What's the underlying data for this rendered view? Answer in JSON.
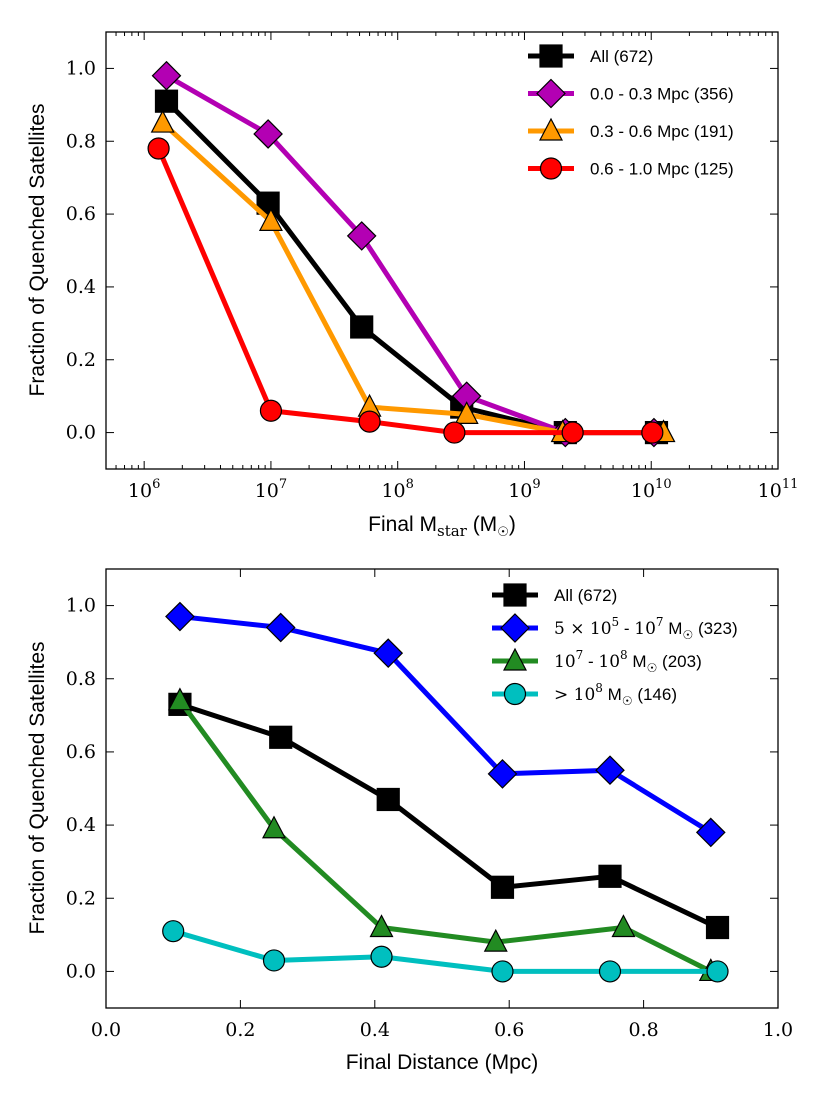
{
  "chart_data": [
    {
      "type": "line",
      "xlabel": "Final M",
      "xlabel_sub": "star",
      "xlabel_unit_open": " (M",
      "xlabel_unit_close": ")",
      "ylabel": "Fraction of Quenched Satellites",
      "xscale": "log",
      "xlim": [
        500000,
        100000000000
      ],
      "ylim": [
        -0.1,
        1.1
      ],
      "xticks": [
        {
          "value": 1000000,
          "base": "10",
          "exp": "6"
        },
        {
          "value": 10000000,
          "base": "10",
          "exp": "7"
        },
        {
          "value": 100000000,
          "base": "10",
          "exp": "8"
        },
        {
          "value": 1000000000,
          "base": "10",
          "exp": "9"
        },
        {
          "value": 10000000000,
          "base": "10",
          "exp": "10"
        },
        {
          "value": 100000000000,
          "base": "10",
          "exp": "11"
        }
      ],
      "yticks": [
        {
          "value": 0.0,
          "label": "0.0"
        },
        {
          "value": 0.2,
          "label": "0.2"
        },
        {
          "value": 0.4,
          "label": "0.4"
        },
        {
          "value": 0.6,
          "label": "0.6"
        },
        {
          "value": 0.8,
          "label": "0.8"
        },
        {
          "value": 1.0,
          "label": "1.0"
        }
      ],
      "legend_position": "top-right",
      "series": [
        {
          "name": "All (672)",
          "color": "#000000",
          "marker": "square",
          "x": [
            1500000,
            9500000,
            52000000,
            320000000,
            2100000000,
            11000000000
          ],
          "y": [
            0.91,
            0.63,
            0.29,
            0.07,
            0.0,
            0.0
          ]
        },
        {
          "name": "0.0 - 0.3 Mpc (356)",
          "color": "#b300b3",
          "marker": "diamond",
          "x": [
            1500000,
            9500000,
            52000000,
            350000000,
            2100000000,
            10500000000
          ],
          "y": [
            0.98,
            0.82,
            0.54,
            0.1,
            0.0,
            0.0
          ]
        },
        {
          "name": "0.3 - 0.6 Mpc (191)",
          "color": "#ff9900",
          "marker": "triangle",
          "x": [
            1400000,
            10000000,
            60000000,
            350000000,
            2000000000,
            12500000000
          ],
          "y": [
            0.85,
            0.58,
            0.07,
            0.05,
            0.0,
            0.0
          ]
        },
        {
          "name": "0.6 - 1.0 Mpc (125)",
          "color": "#ff0000",
          "marker": "circle",
          "x": [
            1300000,
            10000000,
            60000000,
            280000000,
            2400000000,
            10200000000
          ],
          "y": [
            0.78,
            0.06,
            0.03,
            0.0,
            0.0,
            0.0
          ]
        }
      ]
    },
    {
      "type": "line",
      "xlabel": "Final Distance (Mpc)",
      "ylabel": "Fraction of Quenched Satellites",
      "xscale": "linear",
      "xlim": [
        0.0,
        1.0
      ],
      "ylim": [
        -0.1,
        1.1
      ],
      "xticks": [
        {
          "value": 0.0,
          "label": "0.0"
        },
        {
          "value": 0.2,
          "label": "0.2"
        },
        {
          "value": 0.4,
          "label": "0.4"
        },
        {
          "value": 0.6,
          "label": "0.6"
        },
        {
          "value": 0.8,
          "label": "0.8"
        },
        {
          "value": 1.0,
          "label": "1.0"
        }
      ],
      "yticks": [
        {
          "value": 0.0,
          "label": "0.0"
        },
        {
          "value": 0.2,
          "label": "0.2"
        },
        {
          "value": 0.4,
          "label": "0.4"
        },
        {
          "value": 0.6,
          "label": "0.6"
        },
        {
          "value": 0.8,
          "label": "0.8"
        },
        {
          "value": 1.0,
          "label": "1.0"
        }
      ],
      "legend_position": "top-right",
      "series": [
        {
          "name": "All (672)",
          "color": "#000000",
          "marker": "square",
          "x": [
            0.11,
            0.26,
            0.42,
            0.59,
            0.75,
            0.91
          ],
          "y": [
            0.73,
            0.64,
            0.47,
            0.23,
            0.26,
            0.12
          ]
        },
        {
          "name": "5 × 10^5 - 10^7 M☉ (323)",
          "color": "#0000ff",
          "marker": "diamond",
          "x": [
            0.11,
            0.26,
            0.42,
            0.59,
            0.75,
            0.9
          ],
          "y": [
            0.97,
            0.94,
            0.87,
            0.54,
            0.55,
            0.38
          ]
        },
        {
          "name": "10^7 - 10^8 M☉ (203)",
          "color": "#228b22",
          "marker": "triangle",
          "x": [
            0.11,
            0.25,
            0.41,
            0.58,
            0.77,
            0.9
          ],
          "y": [
            0.74,
            0.39,
            0.12,
            0.08,
            0.12,
            0.0
          ]
        },
        {
          "name": "> 10^8 M☉ (146)",
          "color": "#00bfbf",
          "marker": "circle",
          "x": [
            0.1,
            0.25,
            0.41,
            0.59,
            0.75,
            0.91
          ],
          "y": [
            0.11,
            0.03,
            0.04,
            0.0,
            0.0,
            0.0
          ]
        }
      ],
      "legend_display": [
        {
          "parts": [
            {
              "t": "All (672)"
            }
          ]
        },
        {
          "parts": [
            {
              "t": "5",
              "f": "serif"
            },
            {
              "t": " × ",
              "f": "serif"
            },
            {
              "t": "10",
              "f": "serif"
            },
            {
              "t": "5",
              "f": "serif",
              "sup": true
            },
            {
              "t": " - "
            },
            {
              "t": "10",
              "f": "serif"
            },
            {
              "t": "7",
              "f": "serif",
              "sup": true
            },
            {
              "t": " M"
            },
            {
              "t": "☉",
              "sub": true
            },
            {
              "t": " (323)"
            }
          ]
        },
        {
          "parts": [
            {
              "t": "10",
              "f": "serif"
            },
            {
              "t": "7",
              "f": "serif",
              "sup": true
            },
            {
              "t": " - "
            },
            {
              "t": "10",
              "f": "serif"
            },
            {
              "t": "8",
              "f": "serif",
              "sup": true
            },
            {
              "t": " M"
            },
            {
              "t": "☉",
              "sub": true
            },
            {
              "t": " (203)"
            }
          ]
        },
        {
          "parts": [
            {
              "t": "> ",
              "f": "serif"
            },
            {
              "t": "10",
              "f": "serif"
            },
            {
              "t": "8",
              "f": "serif",
              "sup": true
            },
            {
              "t": " M"
            },
            {
              "t": "☉",
              "sub": true
            },
            {
              "t": " (146)"
            }
          ]
        }
      ]
    }
  ],
  "sun_symbol": "☉"
}
